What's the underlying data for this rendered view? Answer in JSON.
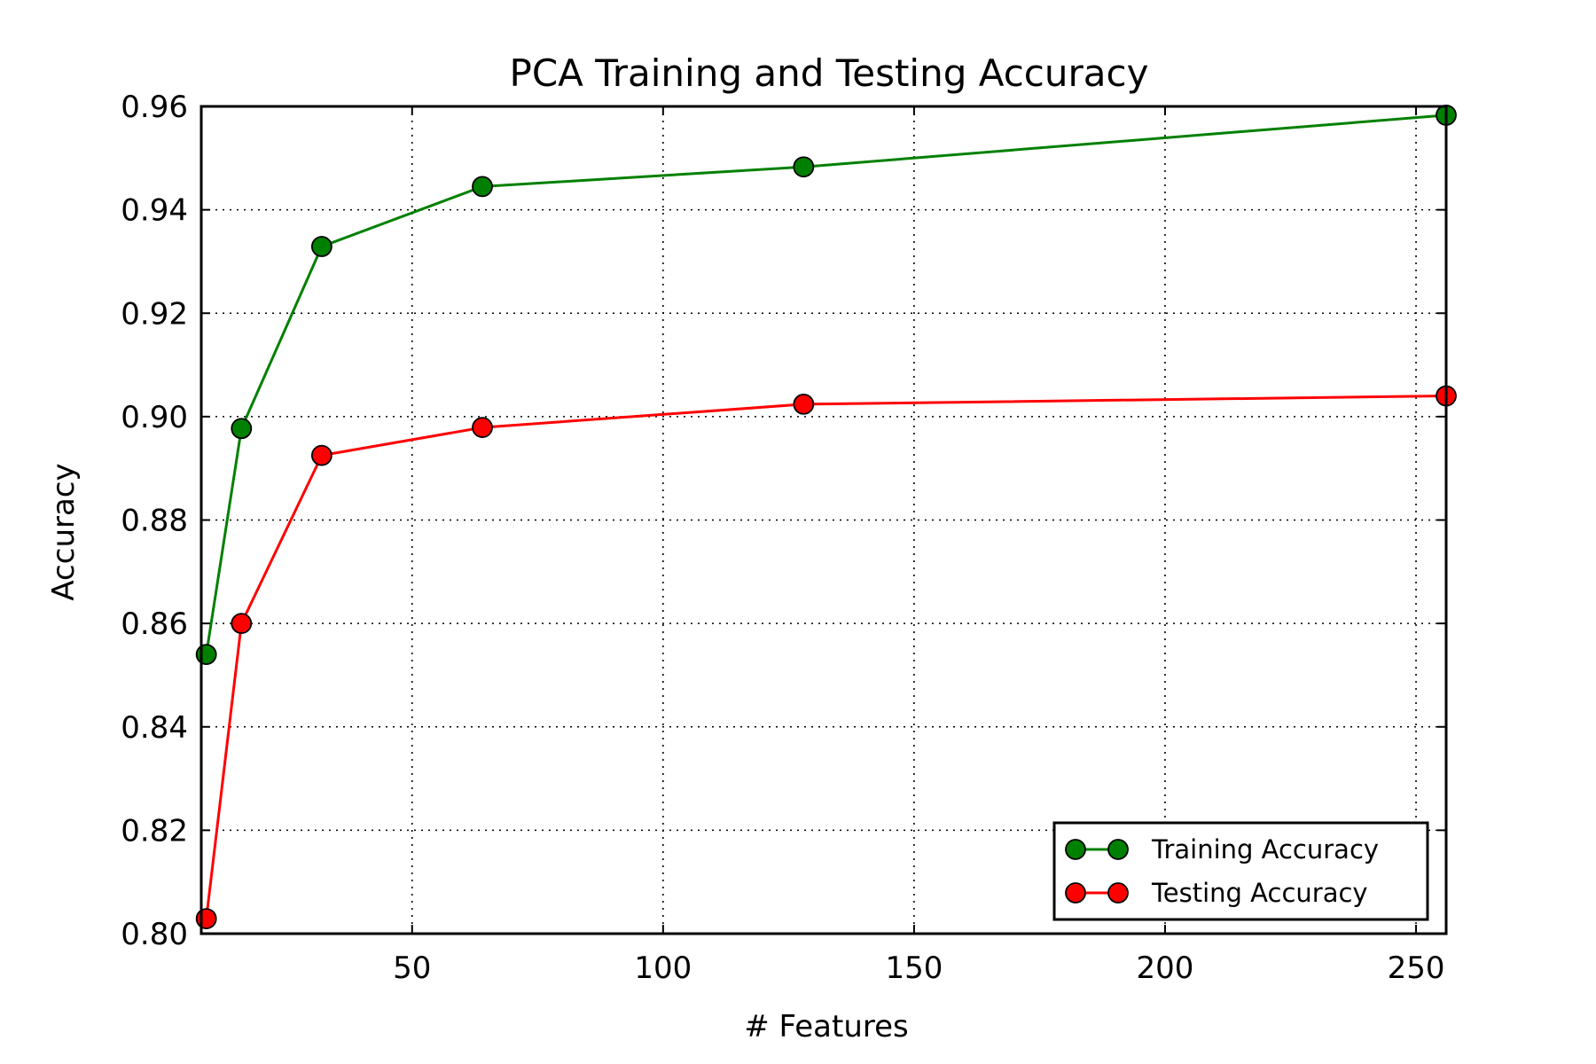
{
  "chart_data": {
    "type": "line",
    "title": "PCA Training and Testing Accuracy",
    "xlabel": "# Features",
    "ylabel": "Accuracy",
    "xlim": [
      8,
      256
    ],
    "ylim": [
      0.8,
      0.96
    ],
    "xticks": [
      50,
      100,
      150,
      200,
      250
    ],
    "xtick_labels": [
      "50",
      "100",
      "150",
      "200",
      "250"
    ],
    "yticks": [
      0.8,
      0.82,
      0.84,
      0.86,
      0.88,
      0.9,
      0.92,
      0.94,
      0.96
    ],
    "ytick_labels": [
      "0.80",
      "0.82",
      "0.84",
      "0.86",
      "0.88",
      "0.90",
      "0.92",
      "0.94",
      "0.96"
    ],
    "grid": true,
    "legend_position": "bottom-right",
    "series": [
      {
        "name": "Training Accuracy",
        "color": "#008000",
        "marker": "circle",
        "x": [
          9,
          16,
          32,
          64,
          128,
          256
        ],
        "y": [
          0.854,
          0.8977,
          0.9329,
          0.9445,
          0.9483,
          0.9583
        ]
      },
      {
        "name": "Testing Accuracy",
        "color": "#ff0000",
        "marker": "circle",
        "x": [
          9,
          16,
          32,
          64,
          128,
          256
        ],
        "y": [
          0.8029,
          0.86,
          0.8925,
          0.8979,
          0.9024,
          0.904
        ]
      }
    ]
  }
}
